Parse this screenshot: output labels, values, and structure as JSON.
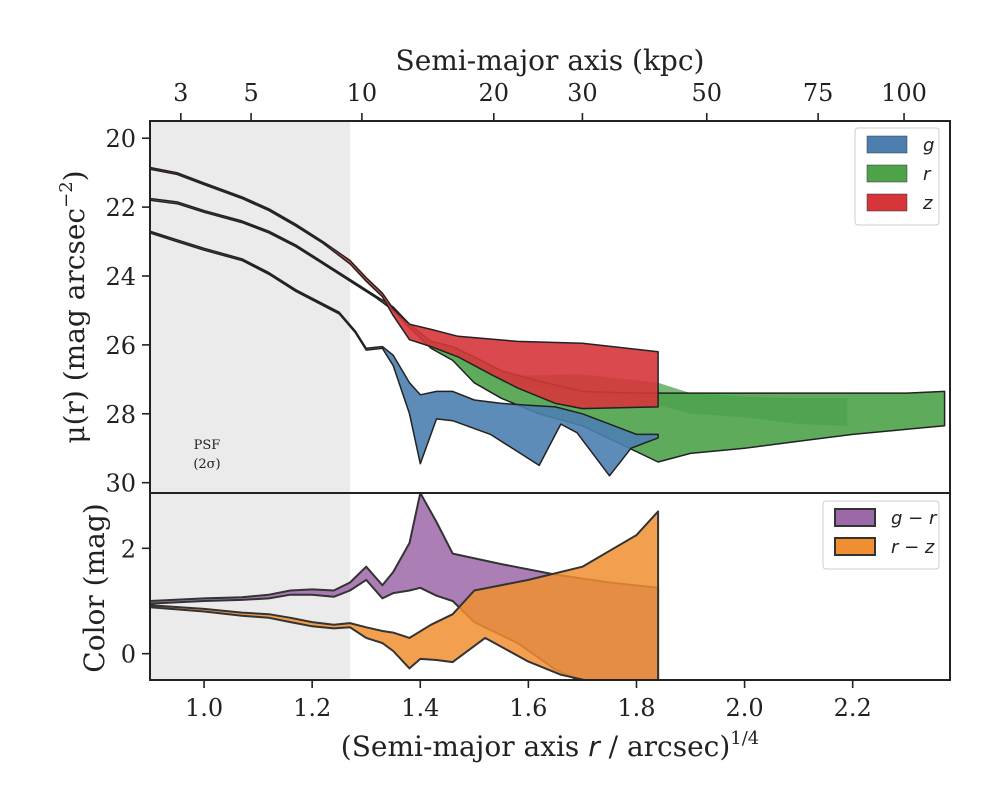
{
  "colors": {
    "g": "#4c7fb0",
    "r": "#4da24a",
    "z": "#d6353a",
    "gr": "#9c69a8",
    "rz": "#f08f31",
    "psf": "#ebebeb",
    "outline": "#222222"
  },
  "chart_data": [
    {
      "type": "area",
      "panel": "top",
      "ylabel_main": "μ(r) (mag arcsec",
      "ylabel_sup": "−2",
      "ylabel_close": ")",
      "xlim": [
        0.9,
        2.38
      ],
      "ylim": [
        30.3,
        19.5
      ],
      "y_inverted": true,
      "yticks": [
        20,
        22,
        24,
        26,
        28,
        30
      ],
      "top_axis": {
        "label": "Semi-major axis (kpc)",
        "ticks": [
          {
            "label": "3",
            "x": 0.957
          },
          {
            "label": "5",
            "x": 1.087
          },
          {
            "label": "10",
            "x": 1.292
          },
          {
            "label": "20",
            "x": 1.536
          },
          {
            "label": "30",
            "x": 1.7
          },
          {
            "label": "50",
            "x": 1.93
          },
          {
            "label": "75",
            "x": 2.136
          },
          {
            "label": "100",
            "x": 2.295
          }
        ]
      },
      "psf": {
        "x_end": 1.27,
        "label_line1": "PSF",
        "label_line2": "(2σ)"
      },
      "legend_position": "top-right",
      "series": [
        {
          "name": "g",
          "upper": [
            [
              0.9,
              22.7
            ],
            [
              0.95,
              22.95
            ],
            [
              1.0,
              23.2
            ],
            [
              1.07,
              23.5
            ],
            [
              1.12,
              23.9
            ],
            [
              1.17,
              24.4
            ],
            [
              1.25,
              25.05
            ],
            [
              1.28,
              25.6
            ],
            [
              1.3,
              26.1
            ],
            [
              1.33,
              26.05
            ],
            [
              1.35,
              26.3
            ],
            [
              1.38,
              27.1
            ],
            [
              1.4,
              27.45
            ],
            [
              1.43,
              27.35
            ],
            [
              1.46,
              27.35
            ],
            [
              1.5,
              27.6
            ],
            [
              1.55,
              27.7
            ],
            [
              1.6,
              27.75
            ],
            [
              1.65,
              27.8
            ],
            [
              1.7,
              28.0
            ],
            [
              1.75,
              28.3
            ],
            [
              1.8,
              28.6
            ],
            [
              1.84,
              28.6
            ]
          ],
          "lower": [
            [
              0.9,
              22.75
            ],
            [
              0.95,
              23.0
            ],
            [
              1.0,
              23.25
            ],
            [
              1.07,
              23.55
            ],
            [
              1.12,
              23.95
            ],
            [
              1.17,
              24.45
            ],
            [
              1.25,
              25.1
            ],
            [
              1.28,
              25.65
            ],
            [
              1.3,
              26.15
            ],
            [
              1.33,
              26.1
            ],
            [
              1.35,
              26.6
            ],
            [
              1.38,
              28.0
            ],
            [
              1.4,
              29.45
            ],
            [
              1.43,
              28.15
            ],
            [
              1.46,
              28.2
            ],
            [
              1.53,
              28.6
            ],
            [
              1.62,
              29.5
            ],
            [
              1.66,
              28.3
            ],
            [
              1.69,
              28.55
            ],
            [
              1.75,
              29.8
            ],
            [
              1.79,
              29.0
            ],
            [
              1.84,
              28.7
            ]
          ]
        },
        {
          "name": "r",
          "upper": [
            [
              0.9,
              21.75
            ],
            [
              0.95,
              21.85
            ],
            [
              1.0,
              22.1
            ],
            [
              1.07,
              22.4
            ],
            [
              1.12,
              22.7
            ],
            [
              1.17,
              23.1
            ],
            [
              1.22,
              23.6
            ],
            [
              1.28,
              24.2
            ],
            [
              1.32,
              24.6
            ],
            [
              1.35,
              24.9
            ],
            [
              1.38,
              25.4
            ],
            [
              1.42,
              25.9
            ],
            [
              1.46,
              26.05
            ],
            [
              1.5,
              26.35
            ],
            [
              1.55,
              26.75
            ],
            [
              1.62,
              27.05
            ],
            [
              1.7,
              27.35
            ],
            [
              1.8,
              27.4
            ],
            [
              1.9,
              27.4
            ],
            [
              2.0,
              27.4
            ],
            [
              2.1,
              27.4
            ],
            [
              2.2,
              27.4
            ],
            [
              2.3,
              27.4
            ],
            [
              2.37,
              27.35
            ]
          ],
          "lower": [
            [
              0.9,
              21.8
            ],
            [
              0.95,
              21.9
            ],
            [
              1.0,
              22.15
            ],
            [
              1.07,
              22.45
            ],
            [
              1.12,
              22.75
            ],
            [
              1.17,
              23.15
            ],
            [
              1.22,
              23.65
            ],
            [
              1.28,
              24.25
            ],
            [
              1.32,
              24.65
            ],
            [
              1.35,
              25.0
            ],
            [
              1.38,
              25.5
            ],
            [
              1.42,
              26.1
            ],
            [
              1.46,
              26.45
            ],
            [
              1.5,
              27.1
            ],
            [
              1.55,
              27.55
            ],
            [
              1.62,
              28.0
            ],
            [
              1.7,
              28.35
            ],
            [
              1.78,
              28.95
            ],
            [
              1.84,
              29.4
            ],
            [
              1.9,
              29.15
            ],
            [
              2.0,
              29.0
            ],
            [
              2.1,
              28.8
            ],
            [
              2.2,
              28.6
            ],
            [
              2.3,
              28.45
            ],
            [
              2.37,
              28.35
            ]
          ]
        },
        {
          "name": "z",
          "upper": [
            [
              0.9,
              20.85
            ],
            [
              0.95,
              21.0
            ],
            [
              1.0,
              21.3
            ],
            [
              1.07,
              21.7
            ],
            [
              1.12,
              22.05
            ],
            [
              1.17,
              22.5
            ],
            [
              1.22,
              23.0
            ],
            [
              1.27,
              23.55
            ],
            [
              1.3,
              24.05
            ],
            [
              1.33,
              24.5
            ],
            [
              1.35,
              24.95
            ],
            [
              1.38,
              25.4
            ],
            [
              1.42,
              25.55
            ],
            [
              1.47,
              25.75
            ],
            [
              1.58,
              25.9
            ],
            [
              1.7,
              25.95
            ],
            [
              1.84,
              26.2
            ]
          ],
          "lower": [
            [
              0.9,
              20.9
            ],
            [
              0.95,
              21.05
            ],
            [
              1.0,
              21.35
            ],
            [
              1.07,
              21.75
            ],
            [
              1.12,
              22.1
            ],
            [
              1.17,
              22.55
            ],
            [
              1.22,
              23.05
            ],
            [
              1.27,
              23.65
            ],
            [
              1.3,
              24.15
            ],
            [
              1.33,
              24.6
            ],
            [
              1.35,
              25.15
            ],
            [
              1.38,
              25.85
            ],
            [
              1.42,
              26.05
            ],
            [
              1.47,
              26.35
            ],
            [
              1.53,
              26.85
            ],
            [
              1.58,
              27.25
            ],
            [
              1.65,
              27.7
            ],
            [
              1.7,
              27.85
            ],
            [
              1.84,
              27.8
            ]
          ]
        }
      ],
      "extras": [
        {
          "series": "r",
          "upper": [
            [
              1.55,
              26.9
            ],
            [
              1.7,
              26.85
            ],
            [
              1.84,
              27.1
            ],
            [
              1.9,
              27.4
            ],
            [
              2.0,
              27.5
            ],
            [
              2.1,
              27.55
            ],
            [
              2.19,
              27.55
            ]
          ],
          "lower": [
            [
              1.55,
              27.1
            ],
            [
              1.7,
              27.4
            ],
            [
              1.84,
              27.75
            ],
            [
              1.9,
              28.0
            ],
            [
              2.0,
              28.1
            ],
            [
              2.1,
              28.3
            ],
            [
              2.19,
              28.35
            ]
          ]
        }
      ]
    },
    {
      "type": "area",
      "panel": "bottom",
      "xlabel_main": "(Semi-major axis ",
      "xlabel_italic": "r",
      "xlabel_rest": " / arcsec)",
      "xlabel_sup": "1/4",
      "ylabel": "Color (mag)",
      "xlim": [
        0.9,
        2.38
      ],
      "ylim": [
        -0.5,
        3.05
      ],
      "xticks": [
        "1.0",
        "1.2",
        "1.4",
        "1.6",
        "1.8",
        "2.0",
        "2.2"
      ],
      "xtick_values": [
        1.0,
        1.2,
        1.4,
        1.6,
        1.8,
        2.0,
        2.2
      ],
      "yticks": [
        0,
        2
      ],
      "legend_position": "top-right",
      "series": [
        {
          "name": "g − r",
          "upper": [
            [
              0.9,
              1.0
            ],
            [
              1.0,
              1.05
            ],
            [
              1.07,
              1.07
            ],
            [
              1.12,
              1.12
            ],
            [
              1.16,
              1.2
            ],
            [
              1.2,
              1.22
            ],
            [
              1.24,
              1.2
            ],
            [
              1.27,
              1.35
            ],
            [
              1.3,
              1.65
            ],
            [
              1.33,
              1.3
            ],
            [
              1.35,
              1.55
            ],
            [
              1.38,
              2.1
            ],
            [
              1.4,
              3.05
            ],
            [
              1.43,
              2.5
            ],
            [
              1.46,
              1.9
            ],
            [
              1.55,
              1.7
            ],
            [
              1.65,
              1.5
            ],
            [
              1.75,
              1.35
            ],
            [
              1.84,
              1.25
            ]
          ],
          "lower": [
            [
              0.9,
              0.95
            ],
            [
              1.0,
              1.0
            ],
            [
              1.07,
              1.02
            ],
            [
              1.12,
              1.05
            ],
            [
              1.16,
              1.12
            ],
            [
              1.2,
              1.12
            ],
            [
              1.24,
              1.08
            ],
            [
              1.27,
              1.2
            ],
            [
              1.3,
              1.4
            ],
            [
              1.33,
              1.05
            ],
            [
              1.35,
              1.15
            ],
            [
              1.38,
              1.2
            ],
            [
              1.4,
              1.25
            ],
            [
              1.43,
              1.1
            ],
            [
              1.46,
              1.0
            ],
            [
              1.5,
              0.6
            ],
            [
              1.58,
              0.2
            ],
            [
              1.65,
              -0.3
            ],
            [
              1.7,
              -0.6
            ],
            [
              1.75,
              -0.6
            ],
            [
              1.84,
              -0.6
            ]
          ]
        },
        {
          "name": "r − z",
          "upper": [
            [
              0.9,
              0.92
            ],
            [
              1.0,
              0.85
            ],
            [
              1.07,
              0.78
            ],
            [
              1.12,
              0.75
            ],
            [
              1.16,
              0.68
            ],
            [
              1.2,
              0.6
            ],
            [
              1.24,
              0.55
            ],
            [
              1.27,
              0.58
            ],
            [
              1.3,
              0.5
            ],
            [
              1.33,
              0.43
            ],
            [
              1.35,
              0.4
            ],
            [
              1.38,
              0.3
            ],
            [
              1.42,
              0.55
            ],
            [
              1.46,
              0.75
            ],
            [
              1.5,
              1.2
            ],
            [
              1.6,
              1.4
            ],
            [
              1.7,
              1.65
            ],
            [
              1.8,
              2.25
            ],
            [
              1.84,
              2.7
            ]
          ],
          "lower": [
            [
              0.9,
              0.88
            ],
            [
              1.0,
              0.8
            ],
            [
              1.07,
              0.72
            ],
            [
              1.12,
              0.68
            ],
            [
              1.16,
              0.6
            ],
            [
              1.2,
              0.52
            ],
            [
              1.24,
              0.48
            ],
            [
              1.27,
              0.5
            ],
            [
              1.3,
              0.3
            ],
            [
              1.33,
              0.2
            ],
            [
              1.35,
              0.05
            ],
            [
              1.38,
              -0.28
            ],
            [
              1.4,
              -0.1
            ],
            [
              1.43,
              -0.12
            ],
            [
              1.46,
              -0.16
            ],
            [
              1.52,
              0.3
            ],
            [
              1.6,
              -0.15
            ],
            [
              1.66,
              -0.4
            ],
            [
              1.72,
              -0.6
            ],
            [
              1.8,
              -0.6
            ],
            [
              1.84,
              -0.6
            ]
          ]
        }
      ]
    }
  ]
}
